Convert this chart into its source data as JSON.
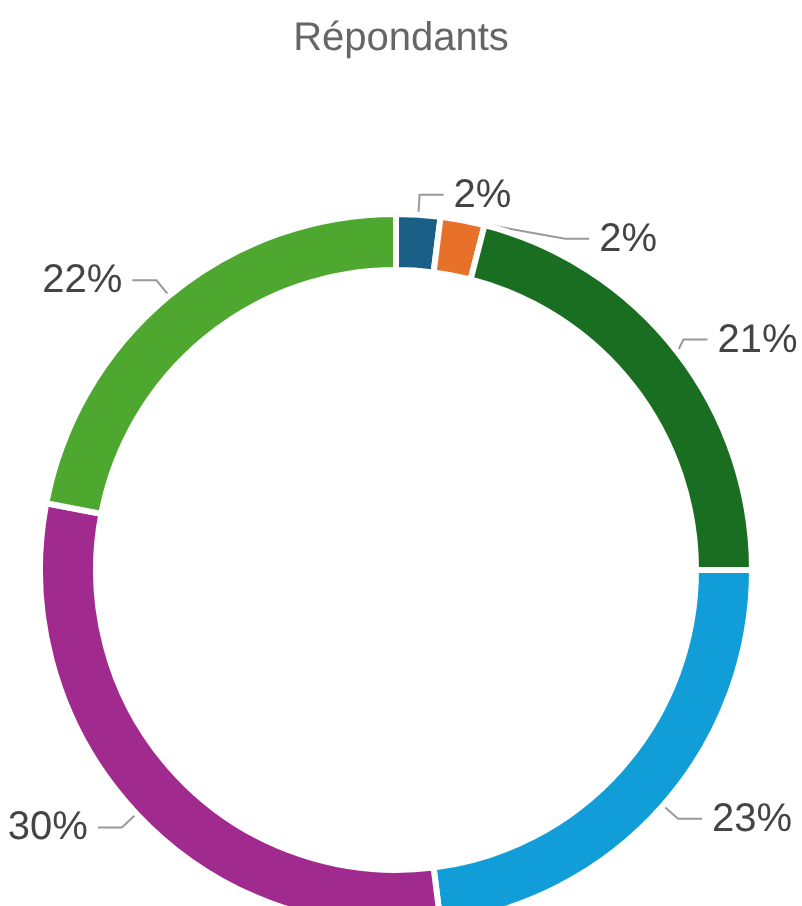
{
  "chart_data": {
    "type": "donut",
    "title": "Répondants",
    "categories": [
      null,
      null,
      null,
      null,
      null,
      null
    ],
    "values": [
      2,
      2,
      21,
      23,
      30,
      22
    ],
    "colors": [
      "#1a5f86",
      "#e8712a",
      "#1a6e22",
      "#119ed8",
      "#a02a8e",
      "#4ea72e"
    ],
    "value_labels": [
      "2%",
      "2%",
      "21%",
      "23%",
      "30%",
      "22%"
    ],
    "legend": false
  }
}
